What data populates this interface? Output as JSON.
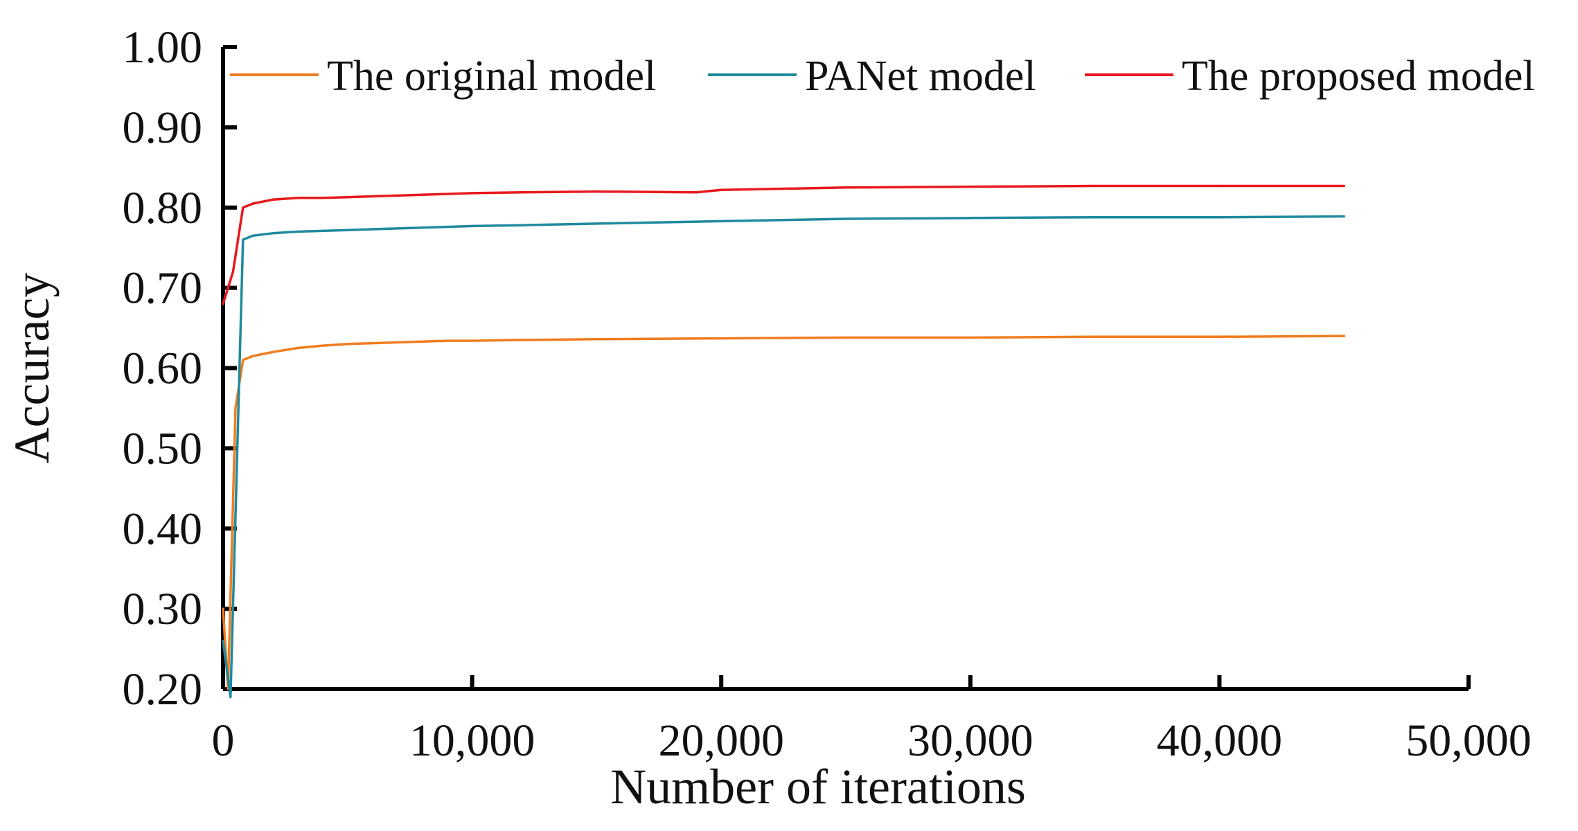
{
  "chart_data": {
    "type": "line",
    "title": "",
    "xlabel": "Number of iterations",
    "ylabel": "Accuracy",
    "xlim": [
      0,
      50000
    ],
    "ylim": [
      0.2,
      1.0
    ],
    "x_ticks": [
      0,
      10000,
      20000,
      30000,
      40000,
      50000
    ],
    "x_tick_labels": [
      "0",
      "10,000",
      "20,000",
      "30,000",
      "40,000",
      "50,000"
    ],
    "y_ticks": [
      0.2,
      0.3,
      0.4,
      0.5,
      0.6,
      0.7,
      0.8,
      0.9,
      1.0
    ],
    "y_tick_labels": [
      "0.20",
      "0.30",
      "0.40",
      "0.50",
      "0.60",
      "0.70",
      "0.80",
      "0.90",
      "1.00"
    ],
    "grid": false,
    "legend_position": "top",
    "series": [
      {
        "name": "The original model",
        "color": "#f07d1f",
        "x": [
          0,
          200,
          500,
          800,
          1200,
          2000,
          3000,
          4000,
          5000,
          6000,
          7000,
          8000,
          9000,
          10000,
          12000,
          15000,
          20000,
          25000,
          30000,
          35000,
          40000,
          45000
        ],
        "values": [
          0.3,
          0.2,
          0.55,
          0.61,
          0.615,
          0.62,
          0.625,
          0.628,
          0.63,
          0.631,
          0.632,
          0.633,
          0.634,
          0.634,
          0.635,
          0.636,
          0.637,
          0.638,
          0.638,
          0.639,
          0.639,
          0.64
        ]
      },
      {
        "name": "PANet model",
        "color": "#1f8a9f",
        "x": [
          0,
          300,
          800,
          1200,
          2000,
          3000,
          4000,
          5000,
          6000,
          7000,
          8000,
          9000,
          10000,
          12000,
          15000,
          20000,
          25000,
          30000,
          35000,
          40000,
          45000
        ],
        "values": [
          0.26,
          0.19,
          0.76,
          0.765,
          0.768,
          0.77,
          0.771,
          0.772,
          0.773,
          0.774,
          0.775,
          0.776,
          0.777,
          0.778,
          0.78,
          0.783,
          0.786,
          0.787,
          0.788,
          0.788,
          0.789
        ]
      },
      {
        "name": "The proposed model",
        "color": "#e8191e",
        "x": [
          0,
          400,
          800,
          1200,
          2000,
          3000,
          4000,
          5000,
          6000,
          7000,
          8000,
          9000,
          10000,
          12000,
          15000,
          19000,
          20000,
          25000,
          30000,
          35000,
          40000,
          45000
        ],
        "values": [
          0.68,
          0.72,
          0.8,
          0.805,
          0.81,
          0.812,
          0.812,
          0.813,
          0.814,
          0.815,
          0.816,
          0.817,
          0.818,
          0.819,
          0.82,
          0.819,
          0.822,
          0.825,
          0.826,
          0.827,
          0.827,
          0.827
        ]
      }
    ]
  }
}
